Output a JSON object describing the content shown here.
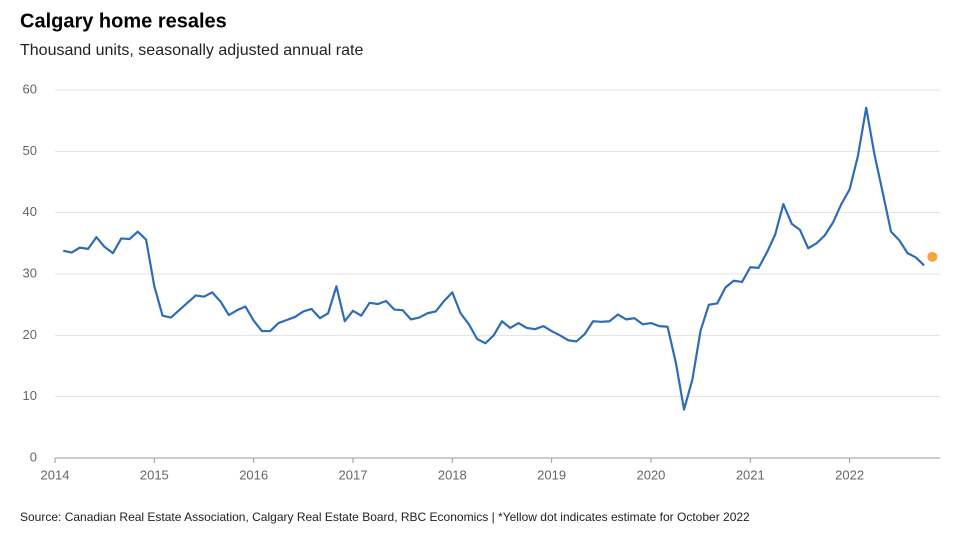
{
  "chart_data": {
    "type": "line",
    "title": "Calgary home resales",
    "subtitle": "Thousand units, seasonally adjusted annual rate",
    "source": "Source: Canadian Real Estate Association, Calgary Real Estate Board, RBC Economics | *Yellow dot indicates estimate for October 2022",
    "xlim": [
      2014,
      2022.91
    ],
    "xticks": [
      2014,
      2015,
      2016,
      2017,
      2018,
      2019,
      2020,
      2021,
      2022
    ],
    "ylim": [
      0,
      60
    ],
    "yticks": [
      0,
      10,
      20,
      30,
      40,
      50,
      60
    ],
    "grid": true,
    "series": [
      {
        "color": "#2f6cb8",
        "marker": "line",
        "x": [
          2014.083,
          2014.167,
          2014.25,
          2014.333,
          2014.417,
          2014.5,
          2014.583,
          2014.667,
          2014.75,
          2014.833,
          2014.917,
          2015,
          2015.083,
          2015.167,
          2015.25,
          2015.333,
          2015.417,
          2015.5,
          2015.583,
          2015.667,
          2015.75,
          2015.833,
          2015.917,
          2016,
          2016.083,
          2016.167,
          2016.25,
          2016.333,
          2016.417,
          2016.5,
          2016.583,
          2016.667,
          2016.75,
          2016.833,
          2016.917,
          2017,
          2017.083,
          2017.167,
          2017.25,
          2017.333,
          2017.417,
          2017.5,
          2017.583,
          2017.667,
          2017.75,
          2017.833,
          2017.917,
          2018,
          2018.083,
          2018.167,
          2018.25,
          2018.333,
          2018.417,
          2018.5,
          2018.583,
          2018.667,
          2018.75,
          2018.833,
          2018.917,
          2019,
          2019.083,
          2019.167,
          2019.25,
          2019.333,
          2019.417,
          2019.5,
          2019.583,
          2019.667,
          2019.75,
          2019.833,
          2019.917,
          2020,
          2020.083,
          2020.167,
          2020.25,
          2020.333,
          2020.417,
          2020.5,
          2020.583,
          2020.667,
          2020.75,
          2020.833,
          2020.917,
          2021,
          2021.083,
          2021.167,
          2021.25,
          2021.333,
          2021.417,
          2021.5,
          2021.583,
          2021.667,
          2021.75,
          2021.833,
          2021.917,
          2022,
          2022.083,
          2022.167,
          2022.25,
          2022.333,
          2022.417,
          2022.5,
          2022.583,
          2022.667,
          2022.75
        ],
        "values": [
          33.8,
          33.5,
          34.3,
          34.1,
          36.0,
          34.4,
          33.4,
          35.8,
          35.7,
          36.9,
          35.6,
          28.0,
          23.2,
          22.9,
          24.1,
          25.3,
          26.5,
          26.3,
          27.0,
          25.5,
          23.3,
          24.1,
          24.7,
          22.4,
          20.7,
          20.7,
          22.0,
          22.5,
          23.0,
          23.9,
          24.3,
          22.8,
          23.6,
          28.0,
          22.3,
          24.0,
          23.2,
          25.3,
          25.1,
          25.6,
          24.2,
          24.1,
          22.6,
          22.9,
          23.6,
          23.9,
          25.6,
          27.0,
          23.6,
          21.8,
          19.4,
          18.7,
          20.0,
          22.3,
          21.2,
          22.0,
          21.2,
          21.0,
          21.5,
          20.7,
          20.0,
          19.2,
          19.0,
          20.2,
          22.3,
          22.2,
          22.3,
          23.4,
          22.6,
          22.8,
          21.8,
          22.0,
          21.5,
          21.4,
          15.6,
          7.9,
          12.8,
          20.8,
          25.0,
          25.2,
          27.8,
          28.9,
          28.7,
          31.1,
          31.0,
          33.5,
          36.4,
          41.4,
          38.2,
          37.2,
          34.2,
          35.0,
          36.3,
          38.4,
          41.4,
          43.8,
          49.2,
          57.1,
          49.5,
          43.3,
          36.9,
          35.5,
          33.4,
          32.7,
          31.4
        ]
      },
      {
        "color": "#f4a340",
        "marker": "dot",
        "x": [
          2022.833
        ],
        "values": [
          32.8
        ]
      }
    ]
  }
}
